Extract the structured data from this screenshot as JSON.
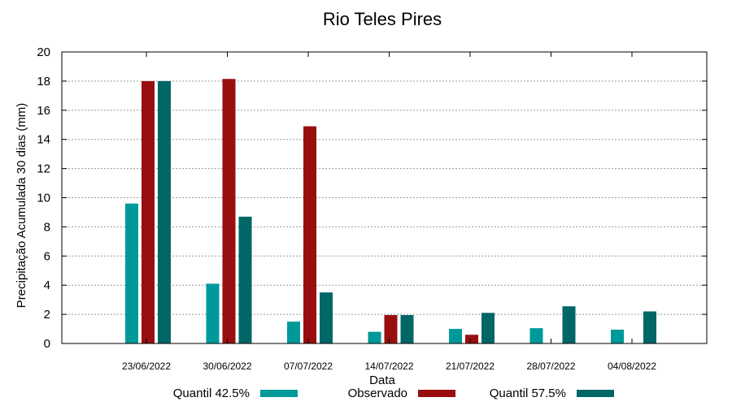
{
  "chart_data": {
    "type": "bar",
    "title": "Rio Teles Pires",
    "xlabel": "Data",
    "ylabel": "Precipitação Acumulada 30 dias (mm)",
    "ylim": [
      0,
      20
    ],
    "yticks": [
      0,
      2,
      4,
      6,
      8,
      10,
      12,
      14,
      16,
      18,
      20
    ],
    "grid": true,
    "legend_position": "bottom",
    "categories": [
      "23/06/2022",
      "30/06/2022",
      "07/07/2022",
      "14/07/2022",
      "21/07/2022",
      "28/07/2022",
      "04/08/2022"
    ],
    "series": [
      {
        "name": "Quantil 42.5%",
        "color": "#009999",
        "values": [
          9.6,
          4.1,
          1.5,
          0.8,
          1.0,
          1.05,
          0.95
        ]
      },
      {
        "name": "Observado",
        "color": "#990f0f",
        "values": [
          18.0,
          18.15,
          14.9,
          1.95,
          0.6,
          null,
          null
        ]
      },
      {
        "name": "Quantil 57.5%",
        "color": "#006666",
        "values": [
          18.0,
          8.7,
          3.5,
          1.95,
          2.1,
          2.55,
          2.2
        ]
      }
    ]
  }
}
